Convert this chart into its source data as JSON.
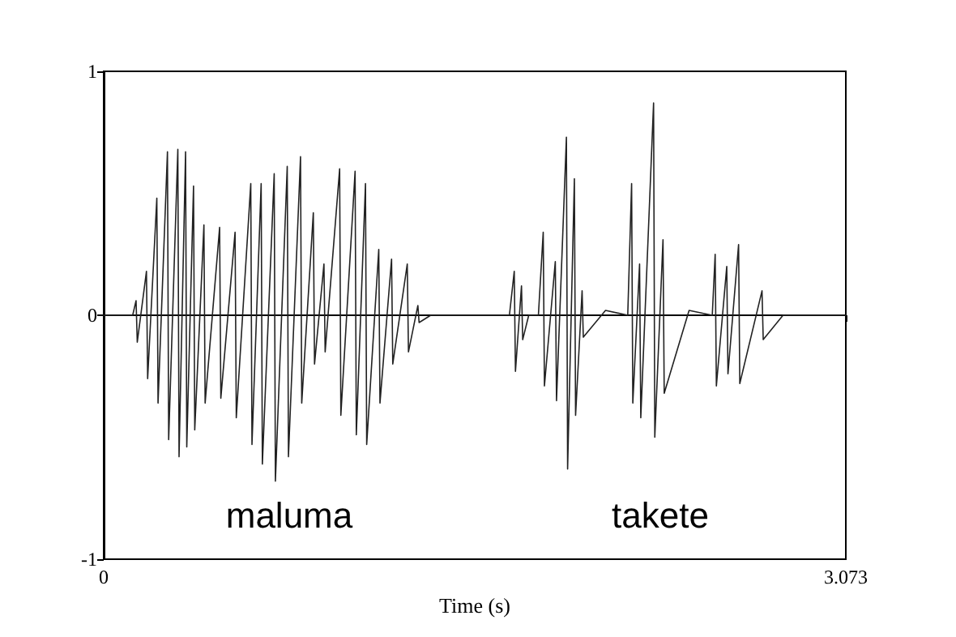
{
  "chart_data": {
    "type": "line",
    "xlabel": "Time (s)",
    "xlim": [
      0,
      3.073
    ],
    "xticks": [
      0,
      3.073
    ],
    "ylim": [
      -1,
      1
    ],
    "yticks": [
      -1,
      0,
      1
    ],
    "marker": "none",
    "line_style": "solid",
    "x": [
      0,
      0.12,
      0.134,
      0.139,
      0.177,
      0.182,
      0.22,
      0.225,
      0.264,
      0.269,
      0.307,
      0.312,
      0.339,
      0.344,
      0.372,
      0.377,
      0.415,
      0.42,
      0.48,
      0.485,
      0.544,
      0.549,
      0.609,
      0.614,
      0.652,
      0.657,
      0.706,
      0.711,
      0.76,
      0.765,
      0.815,
      0.82,
      0.868,
      0.873,
      0.912,
      0.917,
      0.977,
      0.982,
      1.041,
      1.046,
      1.084,
      1.089,
      1.139,
      1.144,
      1.192,
      1.197,
      1.257,
      1.262,
      1.301,
      1.306,
      1.354,
      1.68,
      1.7,
      1.705,
      1.73,
      1.735,
      1.76,
      1.8,
      1.82,
      1.825,
      1.87,
      1.875,
      1.916,
      1.921,
      1.949,
      1.954,
      1.981,
      1.986,
      2.078,
      2.17,
      2.186,
      2.191,
      2.219,
      2.224,
      2.277,
      2.282,
      2.316,
      2.321,
      2.424,
      2.52,
      2.532,
      2.537,
      2.58,
      2.585,
      2.629,
      2.634,
      2.726,
      2.731,
      2.813,
      3.073
    ],
    "series": [
      {
        "color": "#222222",
        "values": [
          0,
          0,
          0.06,
          -0.11,
          0.18,
          -0.26,
          0.48,
          -0.36,
          0.67,
          -0.51,
          0.68,
          -0.58,
          0.67,
          -0.54,
          0.53,
          -0.47,
          0.37,
          -0.36,
          0.36,
          -0.34,
          0.34,
          -0.42,
          0.54,
          -0.53,
          0.54,
          -0.61,
          0.58,
          -0.68,
          0.61,
          -0.58,
          0.65,
          -0.36,
          0.42,
          -0.2,
          0.21,
          -0.15,
          0.6,
          -0.41,
          0.59,
          -0.49,
          0.54,
          -0.53,
          0.27,
          -0.36,
          0.23,
          -0.2,
          0.21,
          -0.15,
          0.04,
          -0.03,
          0,
          0,
          0.18,
          -0.23,
          0.12,
          -0.1,
          0,
          0,
          0.34,
          -0.29,
          0.22,
          -0.35,
          0.73,
          -0.63,
          0.56,
          -0.41,
          0.1,
          -0.09,
          0.02,
          0,
          0.54,
          -0.36,
          0.21,
          -0.42,
          0.87,
          -0.5,
          0.31,
          -0.32,
          0.02,
          0,
          0.25,
          -0.29,
          0.2,
          -0.24,
          0.29,
          -0.28,
          0.1,
          -0.1,
          0,
          0
        ]
      }
    ],
    "annotations": [
      "maluma",
      "takete"
    ]
  }
}
